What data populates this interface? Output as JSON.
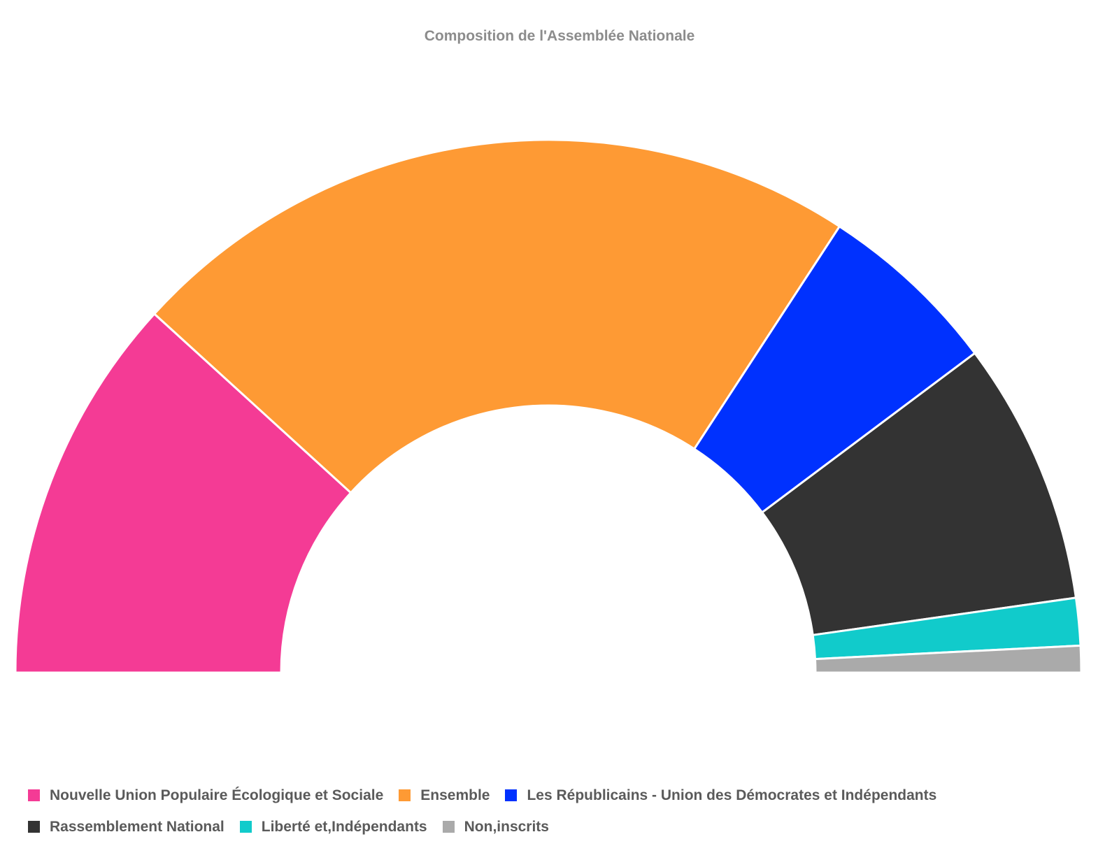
{
  "chart_data": {
    "type": "pie",
    "title": "Composition de l'Assemblée Nationale",
    "series": [
      {
        "name": "Nouvelle Union Populaire Écologique et Sociale",
        "value": 131,
        "color": "#f43b95"
      },
      {
        "name": "Ensemble",
        "value": 250,
        "color": "#fe9a34"
      },
      {
        "name": "Les Républicains - Union des Démocrates et Indépendants",
        "value": 62,
        "color": "#0031fe"
      },
      {
        "name": "Rassemblement National",
        "value": 89,
        "color": "#333333"
      },
      {
        "name": "Liberté et,Indépendants",
        "value": 16,
        "color": "#11cbcb"
      },
      {
        "name": "Non,inscrits",
        "value": 9,
        "color": "#aaaaaa"
      }
    ],
    "legend": "bottom",
    "start_angle_deg": -90,
    "end_angle_deg": 90
  }
}
